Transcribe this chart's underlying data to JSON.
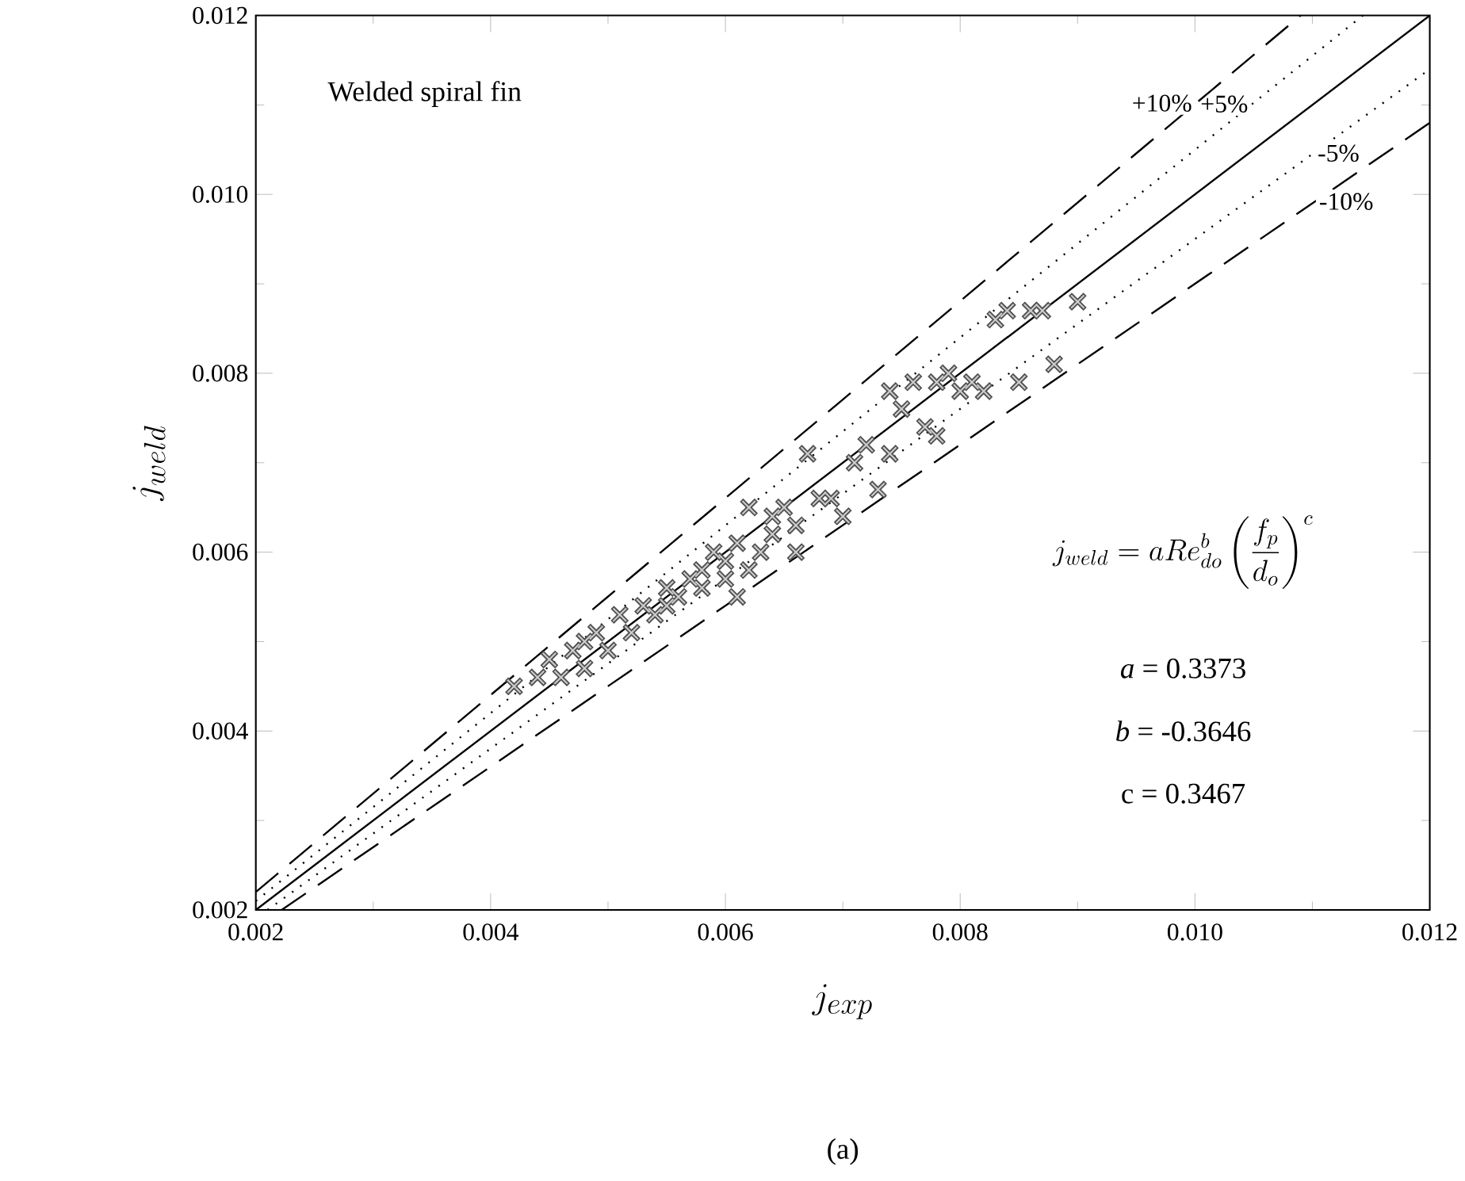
{
  "chart_data": {
    "type": "scatter",
    "title": "Welded spiral fin",
    "xlabel": "j_{exp}",
    "ylabel": "j_{weld}",
    "xlim": [
      0.002,
      0.012
    ],
    "ylim": [
      0.002,
      0.012
    ],
    "xticks": [
      0.002,
      0.004,
      0.006,
      0.008,
      {
        "value": 0.01,
        "label": "0.010"
      },
      0.012
    ],
    "yticks": [
      0.002,
      0.004,
      0.006,
      0.008,
      {
        "value": 0.01,
        "label": "0.010"
      },
      0.012
    ],
    "grid": false,
    "annotations": [
      "j_{weld} = aRe_{do}^{b}\\left(\\frac{f_p}{d_o}\\right)^{c}",
      "*a* =  0.3373",
      "*b* = -0.3646",
      "c =  0.3467",
      "(a)"
    ],
    "series": [
      {
        "marker": "cross",
        "color": "#505050",
        "x": [
          0.0042,
          0.0044,
          0.0045,
          0.0046,
          0.0047,
          0.0048,
          0.0048,
          0.0049,
          0.005,
          0.0051,
          0.0052,
          0.0053,
          0.0054,
          0.0055,
          0.0055,
          0.0056,
          0.0057,
          0.0058,
          0.0058,
          0.0059,
          0.006,
          0.006,
          0.0061,
          0.0061,
          0.0062,
          0.0062,
          0.0063,
          0.0064,
          0.0064,
          0.0065,
          0.0066,
          0.0066,
          0.0067,
          0.0068,
          0.0069,
          0.007,
          0.0071,
          0.0072,
          0.0073,
          0.0074,
          0.0074,
          0.0075,
          0.0076,
          0.0077,
          0.0078,
          0.0078,
          0.0079,
          0.008,
          0.0081,
          0.0082,
          0.0083,
          0.0084,
          0.0085,
          0.0086,
          0.0087,
          0.0088,
          0.009
        ],
        "values": [
          0.0045,
          0.0046,
          0.0048,
          0.0046,
          0.0049,
          0.0047,
          0.005,
          0.0051,
          0.0049,
          0.0053,
          0.0051,
          0.0054,
          0.0053,
          0.0056,
          0.0054,
          0.0055,
          0.0057,
          0.0058,
          0.0056,
          0.006,
          0.0057,
          0.0059,
          0.0055,
          0.0061,
          0.0058,
          0.0065,
          0.006,
          0.0064,
          0.0062,
          0.0065,
          0.0063,
          0.006,
          0.0071,
          0.0066,
          0.0066,
          0.0064,
          0.007,
          0.0072,
          0.0067,
          0.0071,
          0.0078,
          0.0076,
          0.0079,
          0.0074,
          0.0079,
          0.0073,
          0.008,
          0.0078,
          0.0079,
          0.0078,
          0.0086,
          0.0087,
          0.0079,
          0.0087,
          0.0087,
          0.0081,
          0.0088
        ]
      },
      {
        "type": "line",
        "line_style": "solid",
        "color": "#000000",
        "x": [
          0.002,
          0.012
        ],
        "values": [
          0.002,
          0.012
        ]
      },
      {
        "type": "line",
        "line_style": "dotted",
        "color": "#000000",
        "name": "+5%",
        "x": [
          0.002,
          0.01143
        ],
        "values": [
          0.0021,
          0.012
        ]
      },
      {
        "type": "line",
        "line_style": "dotted",
        "color": "#000000",
        "name": "-5%",
        "x": [
          0.0021,
          0.012
        ],
        "values": [
          0.002,
          0.0114
        ]
      },
      {
        "type": "line",
        "line_style": "dashed",
        "color": "#000000",
        "name": "+10%",
        "x": [
          0.002,
          0.0109
        ],
        "values": [
          0.0022,
          0.012
        ]
      },
      {
        "type": "line",
        "line_style": "dashed",
        "color": "#000000",
        "name": "-10%",
        "x": [
          0.00222,
          0.012
        ],
        "values": [
          0.002,
          0.0108
        ]
      }
    ]
  }
}
